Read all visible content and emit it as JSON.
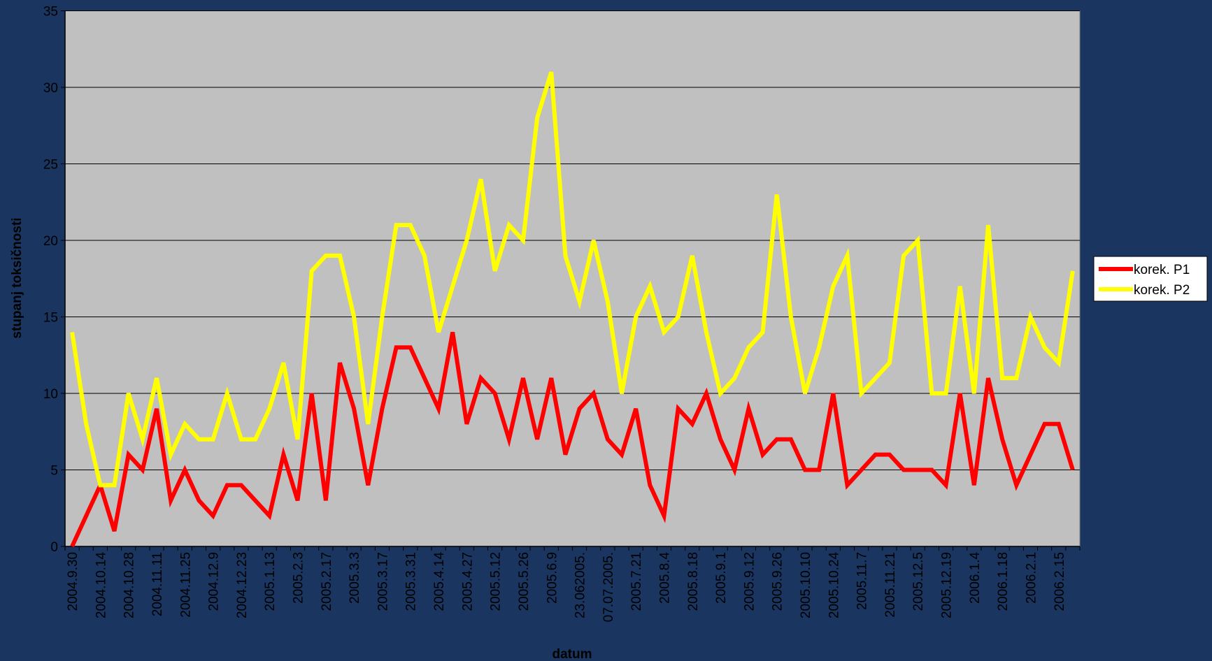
{
  "chart_data": {
    "type": "line",
    "x_label": "datum",
    "y_label": "stupanj toksičnosti",
    "categories": [
      "2004.9.30",
      null,
      "2004.10.14",
      null,
      "2004.10.28",
      null,
      "2004.11.11",
      null,
      "2004.11.25",
      null,
      "2004.12.9",
      null,
      "2004.12.23",
      null,
      "2005.1.13",
      null,
      "2005.2.3",
      null,
      "2005.2.17",
      null,
      "2005.3.3",
      null,
      "2005.3.17",
      null,
      "2005.3.31",
      null,
      "2005.4.14",
      null,
      "2005.4.27",
      null,
      "2005.5.12",
      null,
      "2005.5.26",
      null,
      "2005.6.9",
      null,
      "23.062005.",
      null,
      "07.07.2005.",
      null,
      "2005.7.21",
      null,
      "2005.8.4",
      null,
      "2005.8.18",
      null,
      "2005.9.1",
      null,
      "2005.9.12",
      null,
      "2005.9.26",
      null,
      "2005.10.10",
      null,
      "2005.10.24",
      null,
      "2005.11.7",
      null,
      "2005.11.21",
      null,
      "2005.12.5",
      null,
      "2005.12.19",
      null,
      "2006.1.4",
      null,
      "2006.1.18",
      null,
      "2006.2.1",
      null,
      "2006.2.15",
      null
    ],
    "series": [
      {
        "name": "korek. P1",
        "color": "#ff0000",
        "values": [
          0,
          2,
          4,
          1,
          6,
          5,
          9,
          3,
          5,
          3,
          2,
          4,
          4,
          3,
          2,
          6,
          3,
          10,
          3,
          12,
          9,
          4,
          9,
          13,
          13,
          11,
          9,
          14,
          8,
          11,
          10,
          7,
          11,
          7,
          11,
          6,
          9,
          10,
          7,
          6,
          9,
          4,
          2,
          9,
          8,
          10,
          7,
          5,
          9,
          6,
          7,
          7,
          5,
          5,
          10,
          4,
          5,
          6,
          6,
          5,
          5,
          5,
          4,
          10,
          4,
          11,
          7,
          4,
          6,
          8,
          8,
          5
        ]
      },
      {
        "name": "korek. P2",
        "color": "#ffff00",
        "values": [
          14,
          8,
          4,
          4,
          10,
          7,
          11,
          6,
          8,
          7,
          7,
          10,
          7,
          7,
          9,
          12,
          7,
          18,
          19,
          19,
          15,
          8,
          15,
          21,
          21,
          19,
          14,
          17,
          20,
          24,
          18,
          21,
          20,
          28,
          31,
          19,
          16,
          20,
          16,
          10,
          15,
          17,
          14,
          15,
          19,
          14,
          10,
          11,
          13,
          14,
          23,
          15,
          10,
          13,
          17,
          19,
          10,
          11,
          12,
          19,
          20,
          10,
          10,
          17,
          10,
          21,
          11,
          11,
          15,
          13,
          12,
          18
        ]
      }
    ],
    "ylim": [
      0,
      35
    ],
    "yticks": [
      0,
      5,
      10,
      15,
      20,
      25,
      30,
      35
    ],
    "grid": true,
    "legend": "right"
  }
}
